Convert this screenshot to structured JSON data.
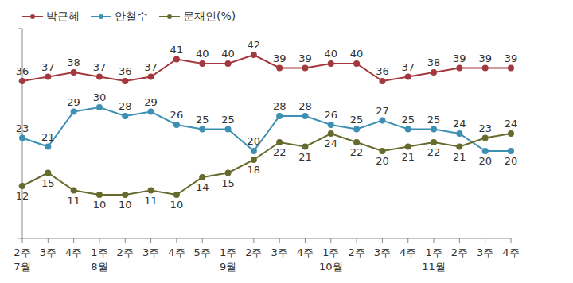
{
  "chart_data": {
    "type": "line",
    "categories": [
      "2주",
      "3주",
      "4주",
      "1주",
      "2주",
      "3주",
      "4주",
      "5주",
      "1주",
      "2주",
      "3주",
      "4주",
      "1주",
      "2주",
      "3주",
      "4주",
      "1주",
      "2주",
      "3주",
      "4주"
    ],
    "month_labels": [
      "7월",
      null,
      null,
      "8월",
      null,
      null,
      null,
      null,
      "9월",
      null,
      null,
      null,
      "10월",
      null,
      null,
      null,
      "11월",
      null,
      null,
      null
    ],
    "series": [
      {
        "name": "박근혜",
        "color": "#a3393e",
        "values": [
          36,
          37,
          38,
          37,
          36,
          37,
          41,
          40,
          40,
          42,
          39,
          39,
          40,
          40,
          36,
          37,
          38,
          39,
          39,
          39
        ]
      },
      {
        "name": "안철수",
        "color": "#3d90b3",
        "values": [
          23,
          21,
          29,
          30,
          28,
          29,
          26,
          25,
          25,
          20,
          28,
          28,
          26,
          25,
          27,
          25,
          25,
          24,
          20,
          20
        ]
      },
      {
        "name": "문재인(%)",
        "color": "#666a2c",
        "values": [
          12,
          15,
          11,
          10,
          10,
          11,
          10,
          14,
          15,
          18,
          22,
          21,
          24,
          22,
          20,
          21,
          22,
          21,
          23,
          24
        ]
      }
    ],
    "ylim": [
      0,
      48
    ],
    "yticks": [
      0,
      12,
      24,
      36,
      48
    ],
    "tick_labels": "x",
    "data_labels": true,
    "legend": "top-left",
    "marker": "circle",
    "grid": false
  }
}
